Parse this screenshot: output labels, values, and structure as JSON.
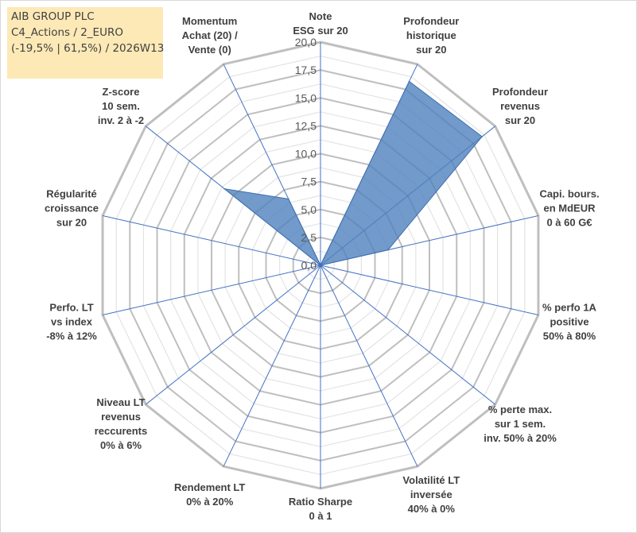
{
  "header": {
    "line1": "AIB GROUP PLC",
    "line2": "C4_Actions / 2_EURO",
    "line3": "(-19,5% | 61,5%) / 2026W13"
  },
  "chart_data": {
    "type": "radar",
    "title": "AIB GROUP PLC",
    "axes": [
      [
        "Note",
        "ESG sur 20"
      ],
      [
        "Profondeur",
        "historique",
        "sur 20"
      ],
      [
        "Profondeur",
        "revenus",
        "sur 20"
      ],
      [
        "Capi. bours.",
        "en MdEUR",
        "0 à 60 G€"
      ],
      [
        "% perfo 1A",
        "positive",
        "50% à 80%"
      ],
      [
        "% perte max.",
        "sur 1 sem.",
        "inv. 50% à 20%"
      ],
      [
        "Volatilité LT",
        "inversée",
        "40% à 0%"
      ],
      [
        "Ratio Sharpe",
        "0 à 1"
      ],
      [
        "Rendement LT",
        "0% à 20%"
      ],
      [
        "Niveau LT",
        "revenus",
        "reccurents",
        "0% à 6%"
      ],
      [
        "Perfo. LT",
        "vs index",
        "-8% à 12%"
      ],
      [
        "Régularité",
        "croissance",
        "sur 20"
      ],
      [
        "Z-score",
        "10 sem.",
        "inv. 2 à -2"
      ],
      [
        "Momentum",
        "Achat (20) /",
        "Vente (0)"
      ]
    ],
    "series": [
      {
        "name": "AIB GROUP PLC",
        "values": [
          0,
          18.3,
          18.5,
          6.2,
          0,
          0,
          0,
          0,
          0,
          0,
          0,
          0,
          11.0,
          6.6
        ]
      }
    ],
    "rlim": [
      0,
      20
    ],
    "ticks": [
      0,
      2.5,
      5,
      7.5,
      10,
      12.5,
      15,
      17.5,
      20
    ],
    "tick_labels": [
      "0,0",
      "2,5",
      "5,0",
      "7,5",
      "10,0",
      "12,5",
      "15,0",
      "17,5",
      "20,0"
    ],
    "colors": {
      "fill": "#4f81bd",
      "grid": "#bfbfbf",
      "spoke": "#4472c4"
    }
  }
}
